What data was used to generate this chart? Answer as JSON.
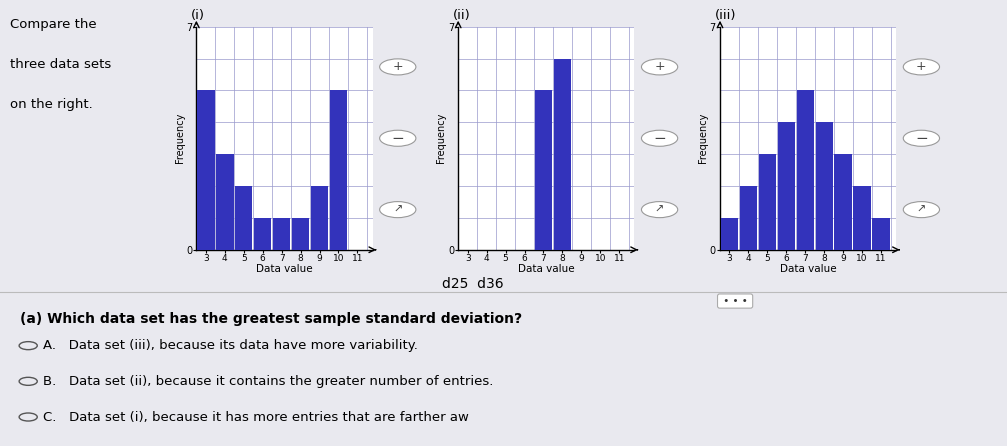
{
  "dataset_i": {
    "frequencies": [
      5,
      3,
      2,
      1,
      1,
      1,
      2,
      5,
      0
    ],
    "label": "(i)"
  },
  "dataset_ii": {
    "frequencies": [
      0,
      0,
      0,
      0,
      5,
      6,
      0,
      0,
      0
    ],
    "label": "(ii)"
  },
  "dataset_iii": {
    "frequencies": [
      1,
      2,
      3,
      4,
      5,
      4,
      3,
      2,
      1
    ],
    "label": "(iii)"
  },
  "bar_color": "#3333BB",
  "grid_color": "#9999CC",
  "ylabel": "Frequency",
  "xlabel": "Data value",
  "ylim": [
    0,
    7
  ],
  "yticks": [
    0,
    7
  ],
  "xticks": [
    3,
    4,
    5,
    6,
    7,
    8,
    9,
    10,
    11
  ],
  "intro_text_1": "Compare the",
  "intro_text_2": "three data sets",
  "intro_text_3": "on the right.",
  "bottom_label": "d25  d36",
  "question_text": "(a) Which data set has the greatest sample standard deviation?",
  "answer_A": "A.   Data set (iii), because its data have more variability.",
  "answer_B": "B.   Data set (ii), because it contains the greater number of entries.",
  "answer_C": "C.   Data set (i), because it has more entries that are farther aw",
  "bg_color": "#E9E9EF"
}
